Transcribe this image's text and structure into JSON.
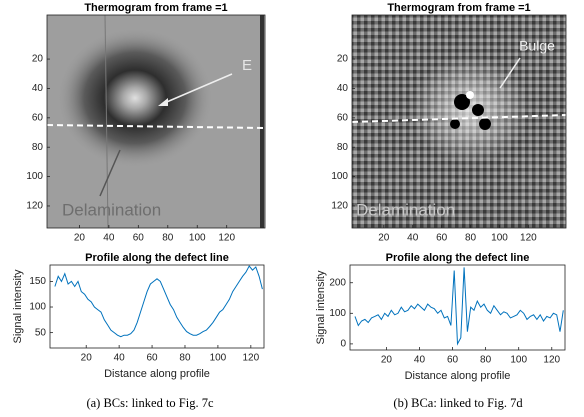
{
  "chart_data": [
    {
      "type": "image",
      "title": "Thermogram from frame =1",
      "xlim": [
        -2,
        146
      ],
      "ylim": [
        -10,
        135
      ],
      "xticks": [
        20,
        40,
        60,
        80,
        100,
        120
      ],
      "yticks": [
        20,
        40,
        60,
        80,
        100,
        120
      ],
      "annotations": [
        "E",
        "Delamination"
      ]
    },
    {
      "type": "line",
      "title": "Profile along the defect line",
      "xlabel": "Distance along profile",
      "ylabel": "Signal intensity",
      "color": "#0072bd",
      "xlim": [
        -2,
        128
      ],
      "ylim": [
        20,
        182
      ],
      "xticks": [
        20,
        40,
        60,
        80,
        100,
        120
      ],
      "yticks": [
        50,
        100,
        150
      ],
      "x": [
        1,
        3,
        5,
        7,
        9,
        11,
        13,
        15,
        17,
        19,
        21,
        23,
        25,
        27,
        29,
        31,
        33,
        35,
        37,
        39,
        41,
        43,
        45,
        47,
        49,
        51,
        53,
        55,
        57,
        59,
        61,
        63,
        65,
        67,
        69,
        71,
        73,
        75,
        77,
        79,
        81,
        83,
        85,
        87,
        89,
        91,
        93,
        95,
        97,
        99,
        101,
        103,
        105,
        107,
        109,
        111,
        113,
        115,
        117,
        119,
        121,
        123,
        125,
        127
      ],
      "values": [
        140,
        160,
        150,
        165,
        145,
        150,
        140,
        150,
        130,
        125,
        115,
        110,
        100,
        95,
        90,
        75,
        65,
        55,
        50,
        45,
        42,
        45,
        45,
        48,
        55,
        70,
        90,
        110,
        130,
        145,
        150,
        155,
        150,
        135,
        120,
        105,
        95,
        80,
        70,
        60,
        52,
        48,
        45,
        45,
        48,
        52,
        55,
        62,
        70,
        80,
        90,
        95,
        105,
        115,
        130,
        140,
        150,
        160,
        168,
        180,
        172,
        178,
        160,
        135
      ]
    },
    {
      "type": "image",
      "title": "Thermogram from frame =1",
      "xlim": [
        -2,
        146
      ],
      "ylim": [
        -10,
        135
      ],
      "xticks": [
        20,
        40,
        60,
        80,
        100,
        120
      ],
      "yticks": [
        20,
        40,
        60,
        80,
        100,
        120
      ],
      "annotations": [
        "Bulge",
        "Delamination"
      ]
    },
    {
      "type": "line",
      "title": "Profile along the defect line",
      "xlabel": "Distance along profile",
      "ylabel": "Signal intensity",
      "color": "#0072bd",
      "xlim": [
        -2,
        128
      ],
      "ylim": [
        -20,
        258
      ],
      "xticks": [
        20,
        40,
        60,
        80,
        100,
        120
      ],
      "yticks": [
        0,
        100,
        200
      ],
      "x": [
        1,
        3,
        5,
        7,
        9,
        11,
        13,
        15,
        17,
        19,
        21,
        23,
        25,
        27,
        29,
        31,
        33,
        35,
        37,
        39,
        41,
        43,
        45,
        47,
        49,
        51,
        53,
        55,
        57,
        59,
        61,
        63,
        65,
        67,
        69,
        71,
        73,
        75,
        77,
        79,
        81,
        83,
        85,
        87,
        89,
        91,
        93,
        95,
        97,
        99,
        101,
        103,
        105,
        107,
        109,
        111,
        113,
        115,
        117,
        119,
        121,
        123,
        125,
        127
      ],
      "values": [
        90,
        60,
        75,
        80,
        70,
        85,
        90,
        95,
        80,
        100,
        90,
        110,
        95,
        100,
        120,
        105,
        110,
        125,
        115,
        130,
        120,
        110,
        130,
        120,
        115,
        100,
        110,
        85,
        90,
        60,
        240,
        0,
        20,
        250,
        40,
        120,
        110,
        140,
        120,
        130,
        110,
        100,
        125,
        110,
        95,
        105,
        100,
        85,
        90,
        95,
        110,
        100,
        80,
        90,
        95,
        80,
        95,
        75,
        90,
        85,
        100,
        95,
        40,
        110
      ]
    }
  ],
  "captions": [
    "(a) BCs: linked to Fig. 7c",
    "(b) BCa: linked to Fig. 7d"
  ]
}
